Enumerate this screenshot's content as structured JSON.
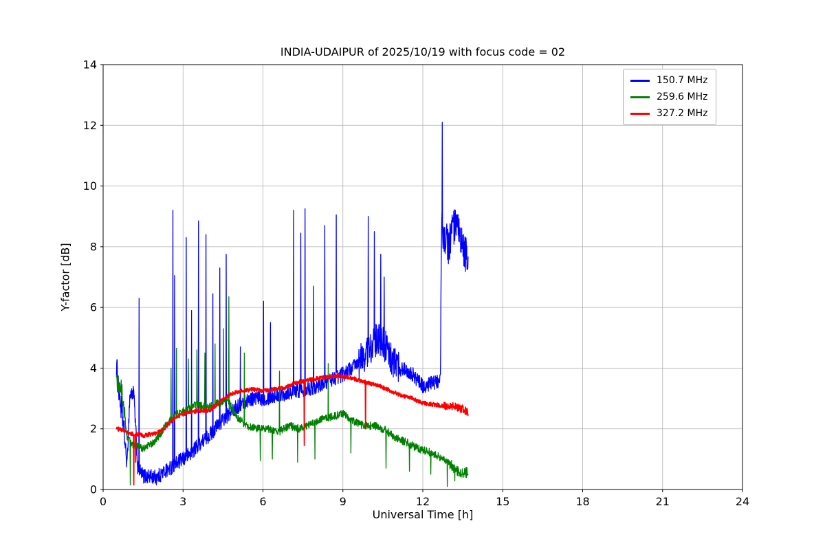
{
  "chart_data": {
    "type": "line",
    "title": "INDIA-UDAIPUR of 2025/10/19 with focus code = 02",
    "xlabel": "Universal Time [h]",
    "ylabel": "Y-factor [dB]",
    "xlim": [
      0,
      24
    ],
    "ylim": [
      0,
      14
    ],
    "xticks": [
      0,
      3,
      6,
      9,
      12,
      15,
      18,
      21,
      24
    ],
    "yticks": [
      0,
      2,
      4,
      6,
      8,
      10,
      12,
      14
    ],
    "grid": true,
    "grid_color": "#b0b0b0",
    "background": "#ffffff",
    "legend": {
      "position": "upper right",
      "entries": [
        "150.7 MHz",
        "259.6 MHz",
        "327.2 MHz"
      ]
    },
    "series": [
      {
        "name": "150.7 MHz",
        "color": "#0000ff",
        "x_range": [
          0.5,
          13.7
        ],
        "keypoints": [
          [
            0.5,
            4.1
          ],
          [
            0.6,
            3.2
          ],
          [
            0.75,
            2.2
          ],
          [
            0.9,
            0.8
          ],
          [
            1.0,
            3.1
          ],
          [
            1.15,
            3.2
          ],
          [
            1.3,
            0.7
          ],
          [
            1.5,
            0.45
          ],
          [
            2.0,
            0.4
          ],
          [
            2.5,
            0.7
          ],
          [
            3.0,
            1.0
          ],
          [
            3.3,
            1.2
          ],
          [
            3.6,
            1.5
          ],
          [
            4.0,
            1.8
          ],
          [
            4.5,
            2.3
          ],
          [
            5.0,
            2.7
          ],
          [
            5.5,
            3.0
          ],
          [
            6.0,
            3.0
          ],
          [
            6.5,
            3.1
          ],
          [
            7.0,
            3.2
          ],
          [
            7.5,
            3.3
          ],
          [
            8.0,
            3.4
          ],
          [
            8.5,
            3.6
          ],
          [
            9.0,
            3.8
          ],
          [
            9.5,
            4.1
          ],
          [
            9.9,
            4.5
          ],
          [
            10.2,
            4.9
          ],
          [
            10.5,
            4.9
          ],
          [
            10.8,
            4.3
          ],
          [
            11.1,
            4.0
          ],
          [
            11.5,
            3.9
          ],
          [
            12.0,
            3.4
          ],
          [
            12.4,
            3.5
          ],
          [
            12.66,
            3.6
          ],
          [
            12.7,
            8.6
          ],
          [
            13.0,
            8.0
          ],
          [
            13.1,
            8.7
          ],
          [
            13.35,
            8.4
          ],
          [
            13.5,
            7.9
          ],
          [
            13.7,
            7.6
          ]
        ],
        "noise": 0.25,
        "noise_regions": [
          [
            0.5,
            0.8,
            0.45
          ],
          [
            9.6,
            11.1,
            0.55
          ],
          [
            12.7,
            13.7,
            0.65
          ]
        ],
        "spikes": [
          [
            1.35,
            6.3
          ],
          [
            2.62,
            9.2
          ],
          [
            2.68,
            7.05
          ],
          [
            3.12,
            8.3
          ],
          [
            3.32,
            5.9
          ],
          [
            3.58,
            8.85
          ],
          [
            3.86,
            8.4
          ],
          [
            4.12,
            6.45
          ],
          [
            4.38,
            7.3
          ],
          [
            4.62,
            7.75
          ],
          [
            5.15,
            4.7
          ],
          [
            6.02,
            6.2
          ],
          [
            6.28,
            5.5
          ],
          [
            7.15,
            9.2
          ],
          [
            7.42,
            8.45
          ],
          [
            7.58,
            9.25
          ],
          [
            7.9,
            6.7
          ],
          [
            8.32,
            8.7
          ],
          [
            8.75,
            9.05
          ],
          [
            9.95,
            9.0
          ],
          [
            10.18,
            8.5
          ],
          [
            10.42,
            7.75
          ],
          [
            10.55,
            7.0
          ],
          [
            12.73,
            12.1
          ]
        ]
      },
      {
        "name": "259.6 MHz",
        "color": "#008000",
        "x_range": [
          0.5,
          13.7
        ],
        "keypoints": [
          [
            0.5,
            3.5
          ],
          [
            0.7,
            3.3
          ],
          [
            0.9,
            1.7
          ],
          [
            1.1,
            1.5
          ],
          [
            1.5,
            1.35
          ],
          [
            1.9,
            1.55
          ],
          [
            2.2,
            1.9
          ],
          [
            2.5,
            2.3
          ],
          [
            2.8,
            2.5
          ],
          [
            3.1,
            2.6
          ],
          [
            3.5,
            2.8
          ],
          [
            3.9,
            2.7
          ],
          [
            4.3,
            2.85
          ],
          [
            4.7,
            2.9
          ],
          [
            5.0,
            2.4
          ],
          [
            5.4,
            2.1
          ],
          [
            5.8,
            2.0
          ],
          [
            6.2,
            2.0
          ],
          [
            6.6,
            1.9
          ],
          [
            7.0,
            2.1
          ],
          [
            7.4,
            2.0
          ],
          [
            7.8,
            2.15
          ],
          [
            8.2,
            2.3
          ],
          [
            8.6,
            2.4
          ],
          [
            9.0,
            2.5
          ],
          [
            9.4,
            2.25
          ],
          [
            9.8,
            2.1
          ],
          [
            10.2,
            2.1
          ],
          [
            10.6,
            1.95
          ],
          [
            11.0,
            1.7
          ],
          [
            11.4,
            1.55
          ],
          [
            11.8,
            1.35
          ],
          [
            12.2,
            1.25
          ],
          [
            12.6,
            1.1
          ],
          [
            13.0,
            0.85
          ],
          [
            13.3,
            0.6
          ],
          [
            13.5,
            0.5
          ],
          [
            13.7,
            0.6
          ]
        ],
        "noise": 0.13,
        "noise_regions": [
          [
            0.5,
            0.85,
            0.3
          ],
          [
            13.0,
            13.7,
            0.18
          ]
        ],
        "spikes": [
          [
            1.02,
            0.15
          ],
          [
            2.55,
            4.0
          ],
          [
            2.75,
            4.65
          ],
          [
            3.2,
            4.3
          ],
          [
            3.52,
            4.6
          ],
          [
            3.82,
            4.5
          ],
          [
            4.2,
            4.8
          ],
          [
            4.52,
            5.3
          ],
          [
            4.72,
            6.35
          ],
          [
            5.3,
            4.5
          ],
          [
            5.9,
            0.95
          ],
          [
            6.35,
            1.0
          ],
          [
            6.62,
            3.9
          ],
          [
            7.3,
            0.9
          ],
          [
            7.95,
            1.0
          ],
          [
            8.45,
            4.15
          ],
          [
            9.3,
            1.2
          ],
          [
            10.62,
            0.7
          ],
          [
            11.5,
            0.6
          ],
          [
            12.3,
            0.5
          ],
          [
            12.92,
            0.1
          ],
          [
            13.2,
            0.28
          ]
        ]
      },
      {
        "name": "327.2 MHz",
        "color": "#ff0000",
        "x_range": [
          0.5,
          13.7
        ],
        "keypoints": [
          [
            0.5,
            2.0
          ],
          [
            0.8,
            1.95
          ],
          [
            1.0,
            1.85
          ],
          [
            1.5,
            1.78
          ],
          [
            2.0,
            1.85
          ],
          [
            2.3,
            2.0
          ],
          [
            2.6,
            2.3
          ],
          [
            2.9,
            2.45
          ],
          [
            3.2,
            2.55
          ],
          [
            3.6,
            2.6
          ],
          [
            4.0,
            2.6
          ],
          [
            4.4,
            2.9
          ],
          [
            4.8,
            3.15
          ],
          [
            5.2,
            3.25
          ],
          [
            5.6,
            3.3
          ],
          [
            6.0,
            3.25
          ],
          [
            6.4,
            3.3
          ],
          [
            6.8,
            3.35
          ],
          [
            7.2,
            3.5
          ],
          [
            7.6,
            3.6
          ],
          [
            8.0,
            3.65
          ],
          [
            8.4,
            3.7
          ],
          [
            8.8,
            3.75
          ],
          [
            9.2,
            3.7
          ],
          [
            9.6,
            3.6
          ],
          [
            10.0,
            3.5
          ],
          [
            10.4,
            3.4
          ],
          [
            10.8,
            3.25
          ],
          [
            11.2,
            3.1
          ],
          [
            11.6,
            3.0
          ],
          [
            12.0,
            2.85
          ],
          [
            12.4,
            2.8
          ],
          [
            12.8,
            2.75
          ],
          [
            13.2,
            2.75
          ],
          [
            13.5,
            2.65
          ],
          [
            13.7,
            2.55
          ]
        ],
        "noise": 0.07,
        "noise_regions": [
          [
            12.8,
            13.7,
            0.13
          ]
        ],
        "spikes": [
          [
            1.15,
            0.15
          ],
          [
            1.22,
            0.9
          ],
          [
            7.55,
            1.45
          ],
          [
            9.85,
            2.0
          ]
        ]
      }
    ]
  }
}
